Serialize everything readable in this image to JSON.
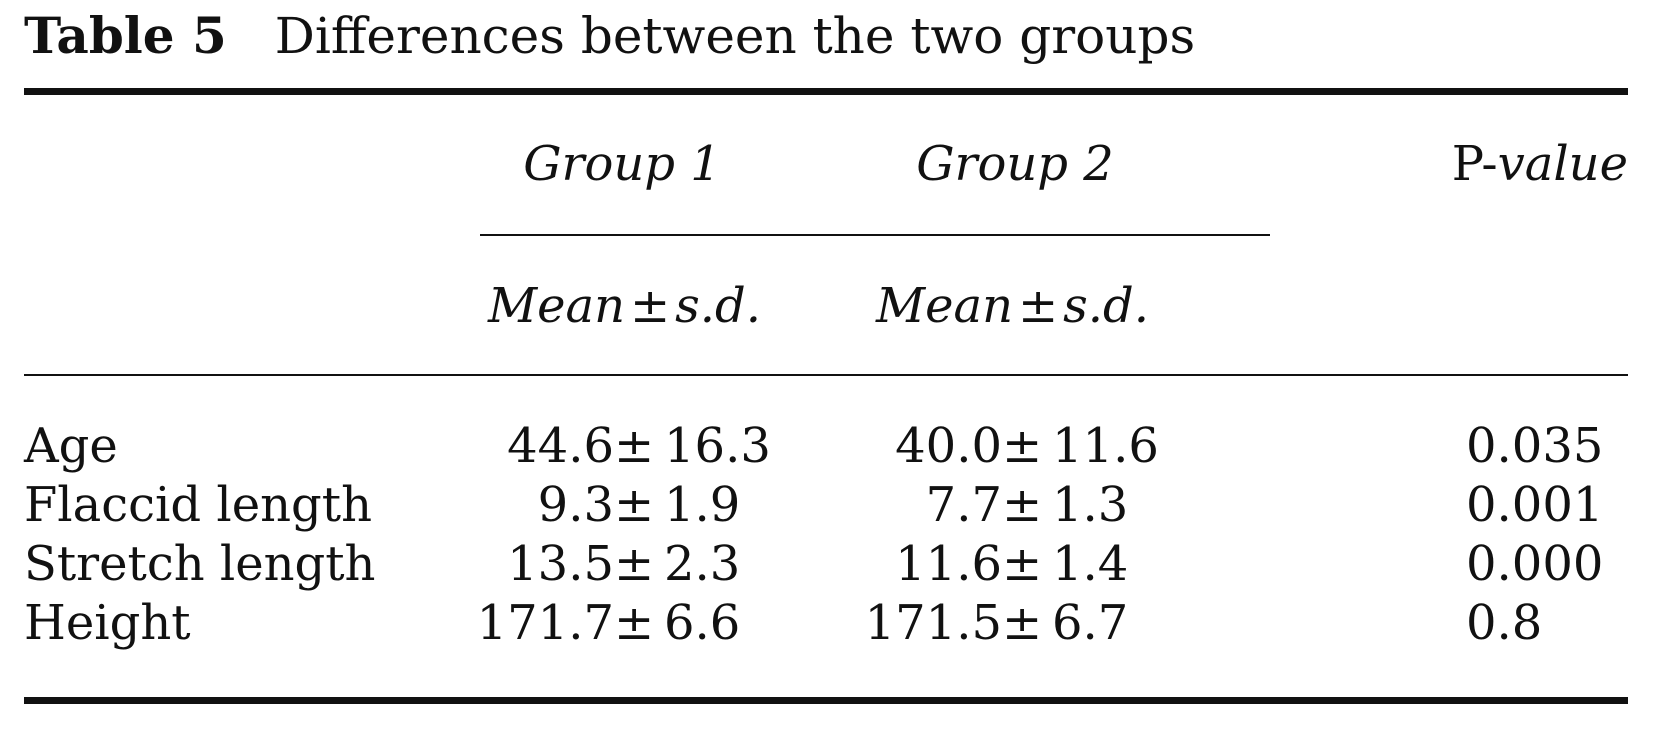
{
  "caption": {
    "label": "Table 5",
    "title": "Differences between the two groups"
  },
  "header": {
    "group1": "Group 1",
    "group2": "Group 2",
    "pvalue_prefix": "P-",
    "pvalue_italic": "value",
    "subheader": {
      "word": "Mean",
      "pm": "±",
      "sd": "s.d."
    }
  },
  "rows": [
    {
      "label": "Age",
      "g1_mean": "44.6",
      "g1_sd": "16.3",
      "g2_mean": "40.0",
      "g2_sd": "11.6",
      "p": "0.035"
    },
    {
      "label": "Flaccid length",
      "g1_mean": "9.3",
      "g1_sd": "1.9",
      "g2_mean": "7.7",
      "g2_sd": "1.3",
      "p": "0.001"
    },
    {
      "label": "Stretch length",
      "g1_mean": "13.5",
      "g1_sd": "2.3",
      "g2_mean": "11.6",
      "g2_sd": "1.4",
      "p": "0.000"
    },
    {
      "label": "Height",
      "g1_mean": "171.7",
      "g1_sd": "6.6",
      "g2_mean": "171.5",
      "g2_sd": "6.7",
      "p": "0.8"
    }
  ],
  "pm_symbol": "±"
}
